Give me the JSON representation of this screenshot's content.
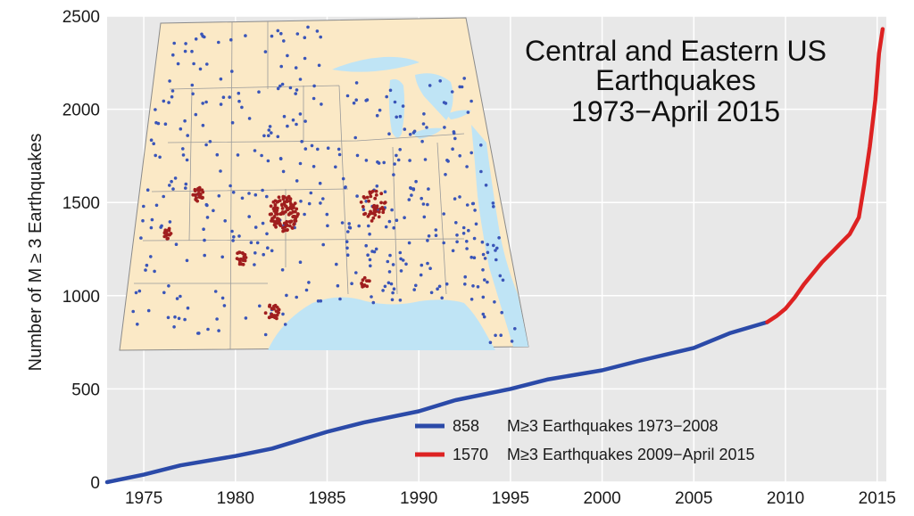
{
  "chart_data": {
    "type": "line",
    "title_lines": [
      "Central and Eastern US",
      "Earthquakes",
      "1973−April 2015"
    ],
    "xlabel": "",
    "ylabel": "Number of M ≥ 3 Earthquakes",
    "xlim": [
      1973,
      2015.5
    ],
    "ylim": [
      0,
      2500
    ],
    "x_ticks": [
      1975,
      1980,
      1985,
      1990,
      1995,
      2000,
      2005,
      2010,
      2015
    ],
    "y_ticks": [
      0,
      500,
      1000,
      1500,
      2000,
      2500
    ],
    "grid": true,
    "legend_position": "bottom-right",
    "series": [
      {
        "count": "858",
        "label": "M≥3 Earthquakes 1973−2008",
        "color": "#2b4aa8",
        "x": [
          1973,
          1975,
          1977,
          1980,
          1982,
          1985,
          1987,
          1990,
          1992,
          1995,
          1997,
          2000,
          2002,
          2005,
          2007,
          2009
        ],
        "y": [
          0,
          40,
          90,
          140,
          180,
          270,
          320,
          380,
          440,
          500,
          550,
          600,
          650,
          720,
          800,
          858
        ]
      },
      {
        "count": "1570",
        "label": "M≥3 Earthquakes 2009−April 2015",
        "color": "#dd2222",
        "x": [
          2009,
          2009.5,
          2010,
          2010.5,
          2011,
          2011.5,
          2012,
          2012.5,
          2013,
          2013.5,
          2014,
          2014.3,
          2014.6,
          2014.9,
          2015.1,
          2015.3
        ],
        "y": [
          858,
          890,
          930,
          990,
          1060,
          1120,
          1180,
          1230,
          1280,
          1330,
          1420,
          1600,
          1800,
          2050,
          2300,
          2430
        ]
      }
    ]
  },
  "inset_map": {
    "land_color": "#fbe9c6",
    "water_color": "#bfe4f5",
    "dot_colors": [
      "#3a55b8",
      "#a01e1e"
    ]
  }
}
